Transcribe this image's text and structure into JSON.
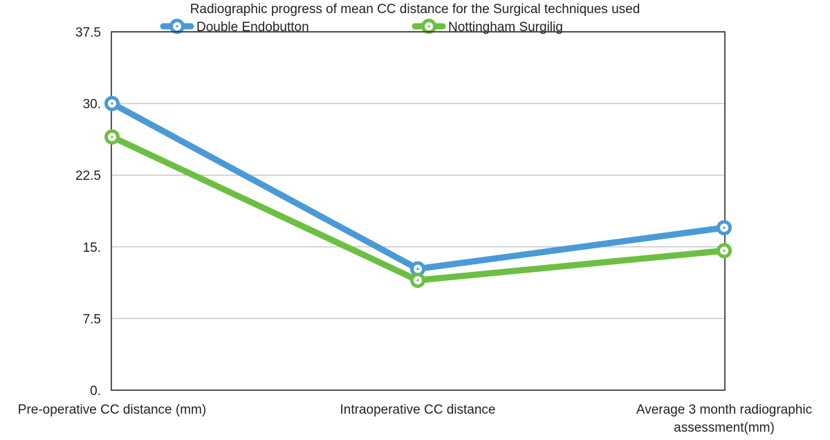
{
  "chart_data": {
    "type": "line",
    "title": "Radiographic progress of mean CC distance for the Surgical techniques used",
    "xlabel": "",
    "ylabel": "",
    "categories": [
      "Pre-operative CC distance (mm)",
      "Intraoperative CC distance",
      "Average 3 month radiographic assessment(mm)"
    ],
    "category_lines": [
      [
        "Pre-operative CC distance (mm)"
      ],
      [
        "Intraoperative CC distance"
      ],
      [
        "Average 3 month radiographic",
        "assessment(mm)"
      ]
    ],
    "y_ticks": [
      "0.",
      "7.5",
      "15.",
      "22.5",
      "30.",
      "37.5"
    ],
    "ylim": [
      0,
      37.5
    ],
    "grid": true,
    "legend_position": "top",
    "series": [
      {
        "name": "Double Endobutton",
        "color": "#4a9ad6",
        "values": [
          30.0,
          12.7,
          17.0
        ]
      },
      {
        "name": "Nottingham Surgilig",
        "color": "#6cbf43",
        "values": [
          26.5,
          11.5,
          14.6
        ]
      }
    ]
  }
}
